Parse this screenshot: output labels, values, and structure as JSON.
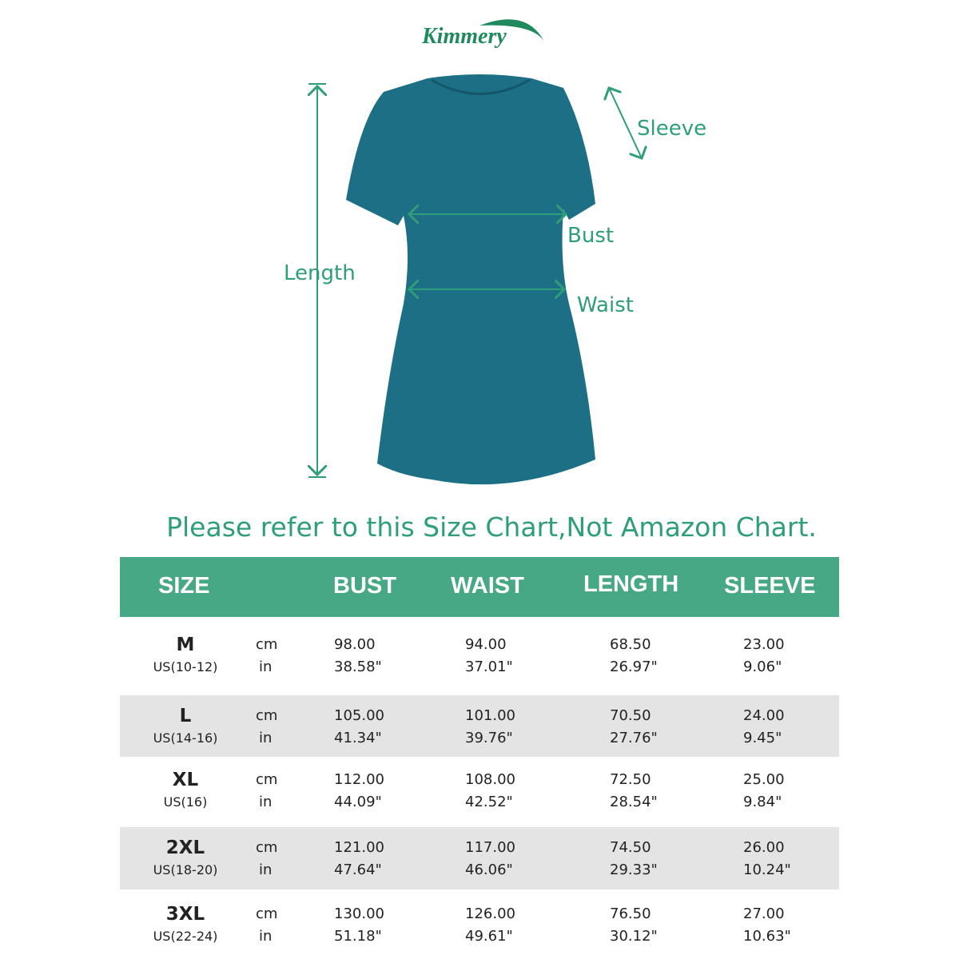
{
  "brand": "Kimmery",
  "diagram": {
    "labels": {
      "sleeve": "Sleeve",
      "bust": "Bust",
      "length": "Length",
      "waist": "Waist"
    },
    "garment_color": "#1d6f86",
    "accent": "#2e9e78"
  },
  "note": "Please refer to this Size Chart,Not Amazon Chart.",
  "table": {
    "header_color": "#47a886",
    "headers": {
      "size": "SIZE",
      "bust": "BUST",
      "waist": "WAIST",
      "length": "LENGTH",
      "sleeve": "SLEEVE"
    },
    "rows": [
      {
        "size": "M",
        "us": "US(10-12)",
        "cm": "cm",
        "in": "in",
        "bust_cm": "98.00",
        "bust_in": "38.58\"",
        "waist_cm": "94.00",
        "waist_in": "37.01\"",
        "length_cm": "68.50",
        "length_in": "26.97\"",
        "sleeve_cm": "23.00",
        "sleeve_in": "9.06\""
      },
      {
        "size": "L",
        "us": "US(14-16)",
        "cm": "cm",
        "in": "in",
        "bust_cm": "105.00",
        "bust_in": "41.34\"",
        "waist_cm": "101.00",
        "waist_in": "39.76\"",
        "length_cm": "70.50",
        "length_in": "27.76\"",
        "sleeve_cm": "24.00",
        "sleeve_in": "9.45\""
      },
      {
        "size": "XL",
        "us": "US(16)",
        "cm": "cm",
        "in": "in",
        "bust_cm": "112.00",
        "bust_in": "44.09\"",
        "waist_cm": "108.00",
        "waist_in": "42.52\"",
        "length_cm": "72.50",
        "length_in": "28.54\"",
        "sleeve_cm": "25.00",
        "sleeve_in": "9.84\""
      },
      {
        "size": "2XL",
        "us": "US(18-20)",
        "cm": "cm",
        "in": "in",
        "bust_cm": "121.00",
        "bust_in": "47.64\"",
        "waist_cm": "117.00",
        "waist_in": "46.06\"",
        "length_cm": "74.50",
        "length_in": "29.33\"",
        "sleeve_cm": "26.00",
        "sleeve_in": "10.24\""
      },
      {
        "size": "3XL",
        "us": "US(22-24)",
        "cm": "cm",
        "in": "in",
        "bust_cm": "130.00",
        "bust_in": "51.18\"",
        "waist_cm": "126.00",
        "waist_in": "49.61\"",
        "length_cm": "76.50",
        "length_in": "30.12\"",
        "sleeve_cm": "27.00",
        "sleeve_in": "10.63\""
      }
    ]
  }
}
